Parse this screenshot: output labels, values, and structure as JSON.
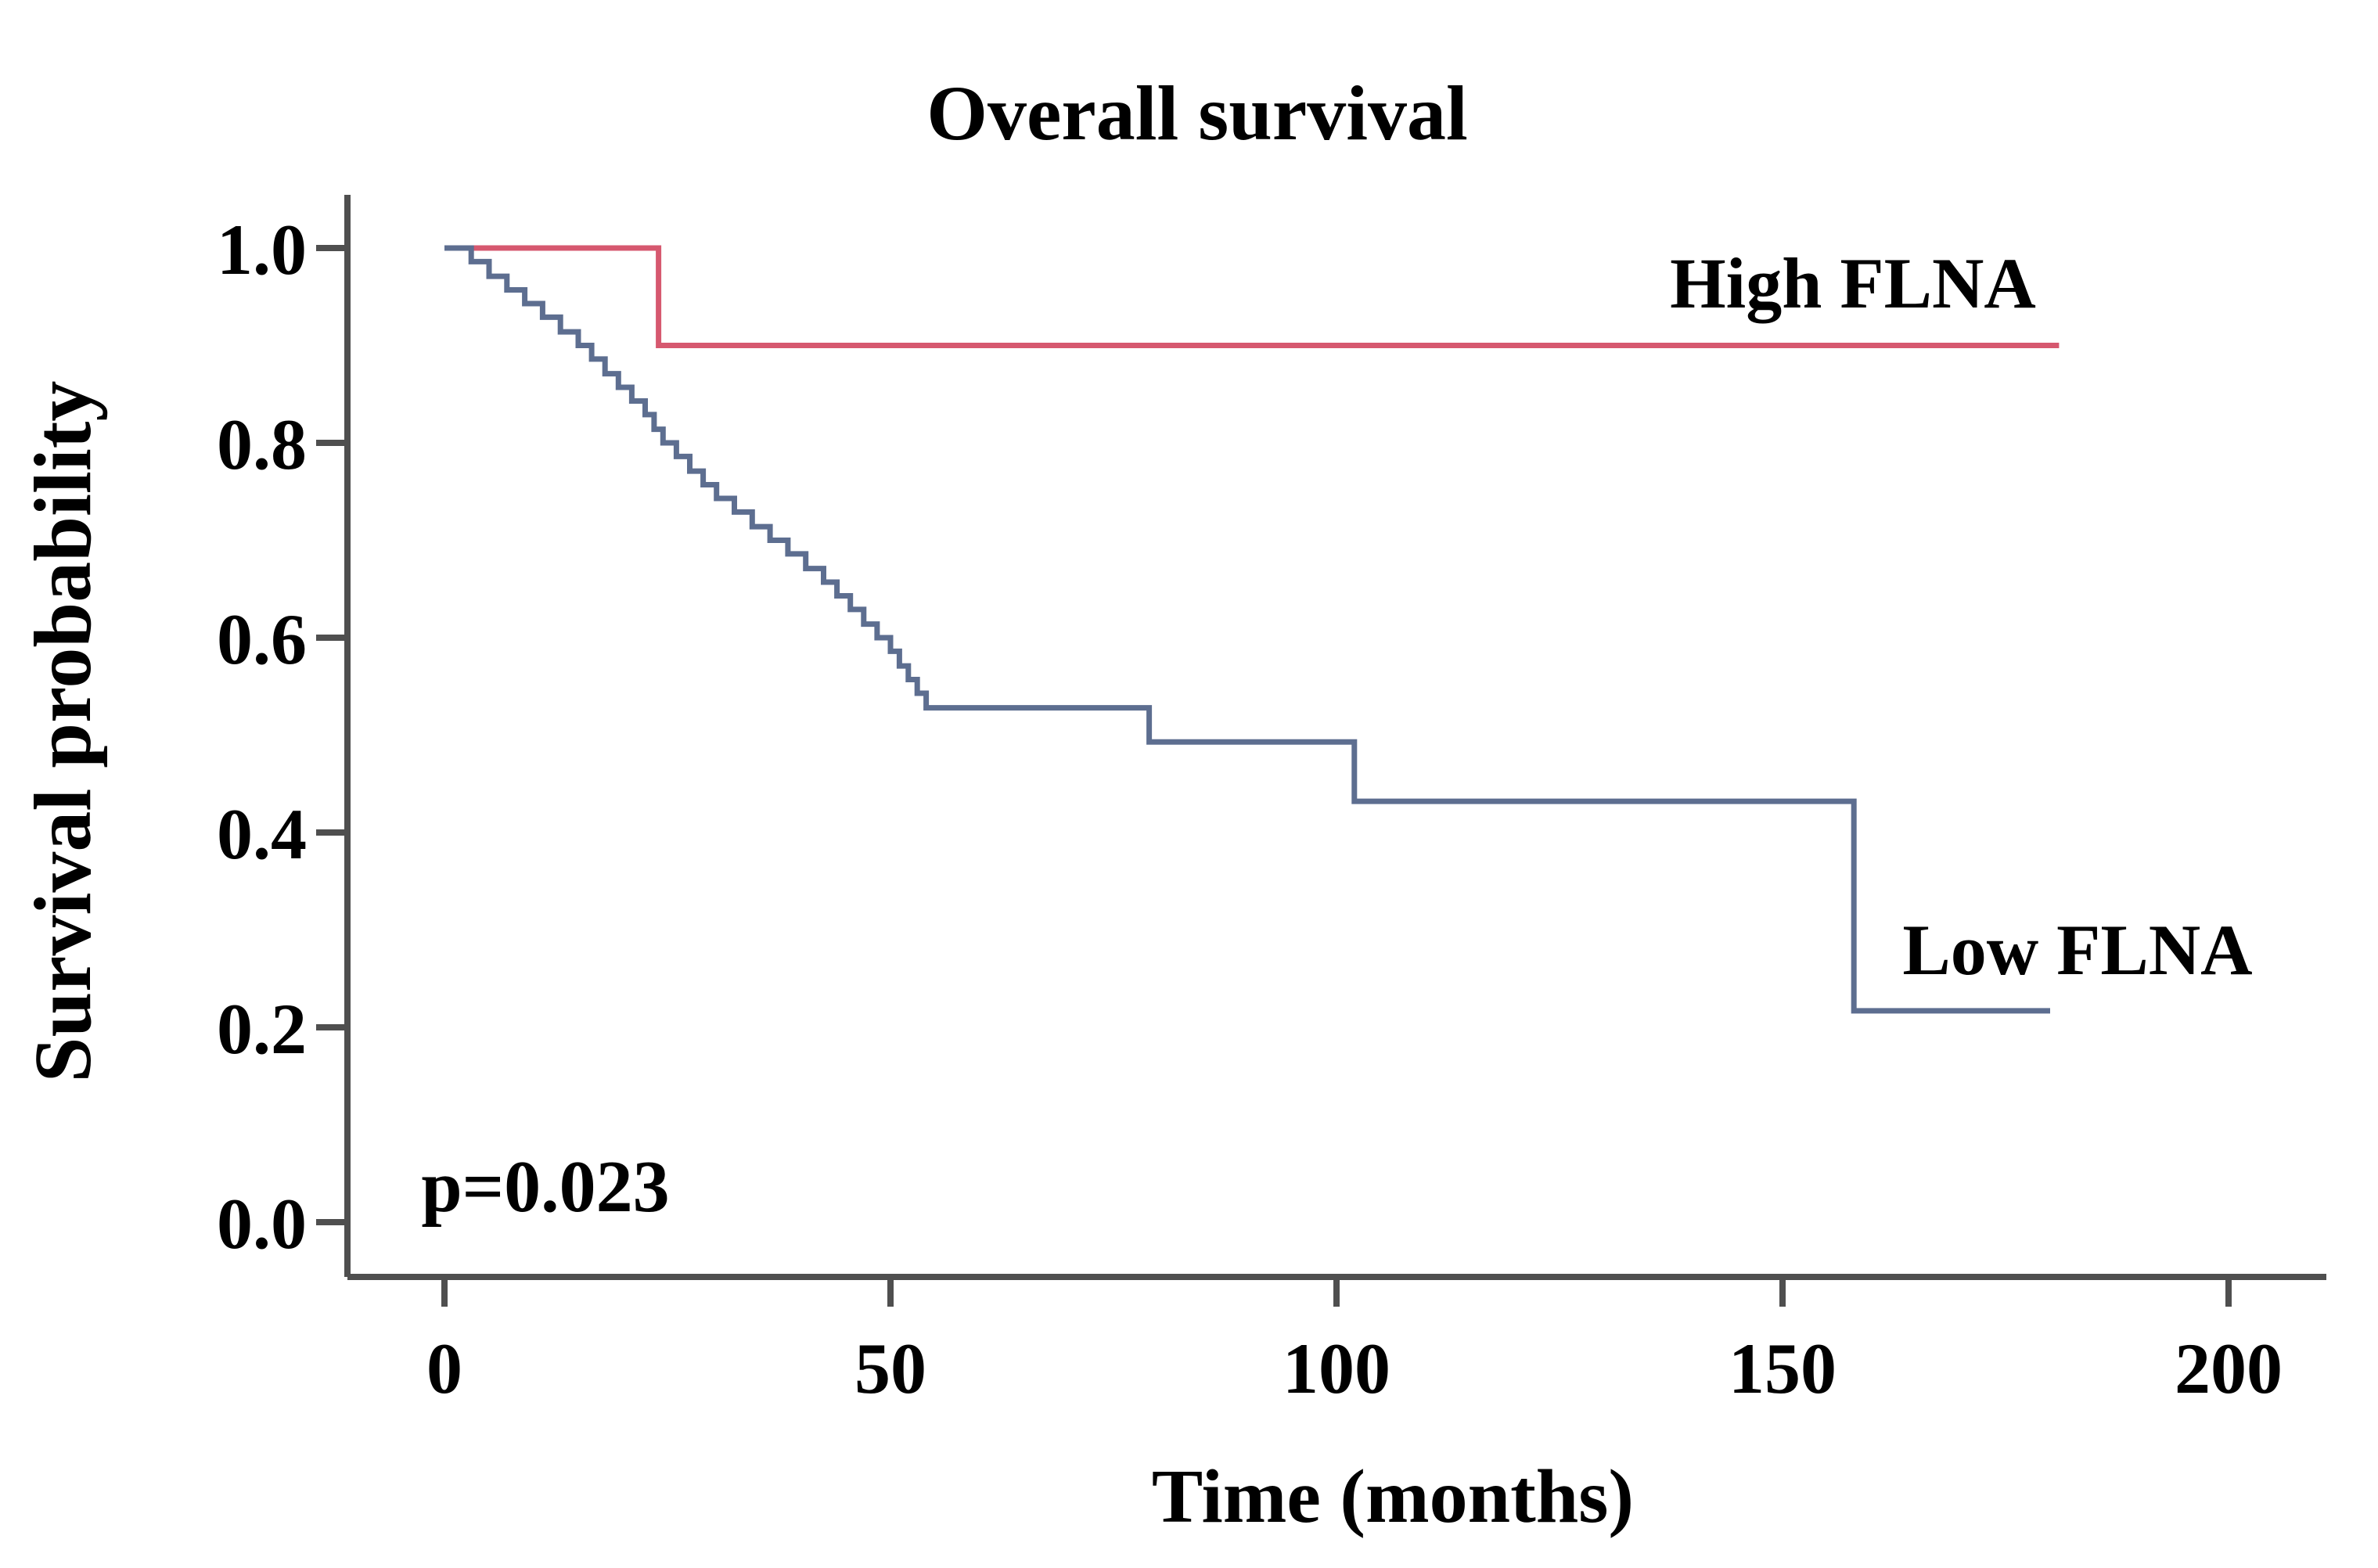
{
  "title": "Overall survival",
  "axes": {
    "x_label": "Time (months)",
    "y_label": "Survival probability"
  },
  "annotation": {
    "p_value": "p=0.023"
  },
  "series_labels": {
    "high": "High FLNA",
    "low": "Low FLNA"
  },
  "colors": {
    "high_curve": "#d6586f",
    "low_curve": "#5d6e90",
    "axis": "#4f4f4f",
    "text": "#000000",
    "background": "#ffffff"
  },
  "chart_data": {
    "type": "line",
    "subtype": "kaplan-meier-step",
    "title": "Overall survival",
    "xlabel": "Time (months)",
    "ylabel": "Survival probability",
    "xlim": [
      0,
      200
    ],
    "ylim": [
      0.0,
      1.0
    ],
    "grid": false,
    "legend_position": "annotated-inline",
    "x_ticks": [
      "0",
      "50",
      "100",
      "150",
      "200"
    ],
    "y_ticks": [
      "1.0",
      "0.8",
      "0.6",
      "0.4",
      "0.2",
      "0.0"
    ],
    "annotations": [
      {
        "text": "p=0.023",
        "x_months": 11,
        "y_prob": 0.05
      }
    ],
    "series": [
      {
        "name": "High FLNA",
        "color": "#d6586f",
        "end_month": 181,
        "steps": [
          [
            0,
            1.0
          ],
          [
            24,
            0.9
          ],
          [
            181,
            0.9
          ]
        ]
      },
      {
        "name": "Low FLNA",
        "color": "#5d6e90",
        "end_month": 180,
        "steps": [
          [
            0,
            1.0
          ],
          [
            3,
            0.986
          ],
          [
            5,
            0.971
          ],
          [
            7,
            0.957
          ],
          [
            9,
            0.943
          ],
          [
            11,
            0.929
          ],
          [
            13,
            0.914
          ],
          [
            15,
            0.9
          ],
          [
            16.5,
            0.886
          ],
          [
            18,
            0.871
          ],
          [
            19.5,
            0.857
          ],
          [
            21,
            0.843
          ],
          [
            22.5,
            0.829
          ],
          [
            23.5,
            0.814
          ],
          [
            24.5,
            0.8
          ],
          [
            26,
            0.786
          ],
          [
            27.5,
            0.771
          ],
          [
            29,
            0.757
          ],
          [
            30.5,
            0.743
          ],
          [
            32.5,
            0.729
          ],
          [
            34.5,
            0.714
          ],
          [
            36.5,
            0.7
          ],
          [
            38.5,
            0.686
          ],
          [
            40.5,
            0.671
          ],
          [
            42.5,
            0.657
          ],
          [
            44,
            0.643
          ],
          [
            45.5,
            0.629
          ],
          [
            47,
            0.614
          ],
          [
            48.5,
            0.6
          ],
          [
            50,
            0.586
          ],
          [
            51,
            0.571
          ],
          [
            52,
            0.557
          ],
          [
            53,
            0.543
          ],
          [
            54,
            0.528
          ],
          [
            79,
            0.493
          ],
          [
            102,
            0.432
          ],
          [
            158,
            0.217
          ],
          [
            180,
            0.217
          ]
        ]
      }
    ]
  }
}
